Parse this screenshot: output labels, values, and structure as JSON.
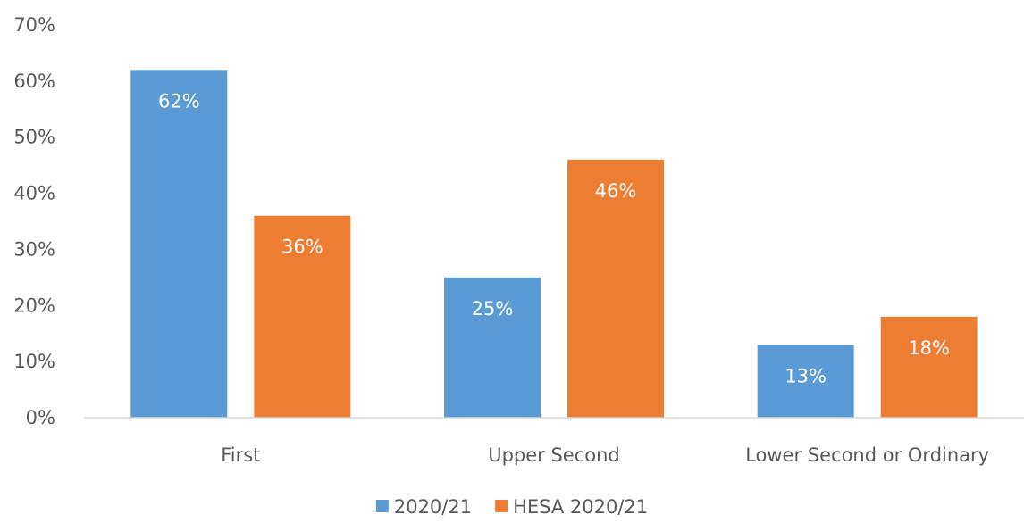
{
  "chart_data": {
    "type": "bar",
    "categories": [
      "First",
      "Upper Second",
      "Lower Second or Ordinary"
    ],
    "series": [
      {
        "name": "2020/21",
        "color": "#5B9BD5",
        "values": [
          62,
          25,
          13
        ],
        "labels": [
          "62%",
          "25%",
          "13%"
        ]
      },
      {
        "name": "HESA 2020/21",
        "color": "#ED7D31",
        "values": [
          36,
          46,
          18
        ],
        "labels": [
          "36%",
          "46%",
          "18%"
        ]
      }
    ],
    "ylim": [
      0,
      70
    ],
    "yticks": [
      0,
      10,
      20,
      30,
      40,
      50,
      60,
      70
    ],
    "ytick_labels": [
      "0%",
      "10%",
      "20%",
      "30%",
      "40%",
      "50%",
      "60%",
      "70%"
    ],
    "grid": false,
    "legend_position": "bottom",
    "title": "",
    "xlabel": "",
    "ylabel": ""
  }
}
